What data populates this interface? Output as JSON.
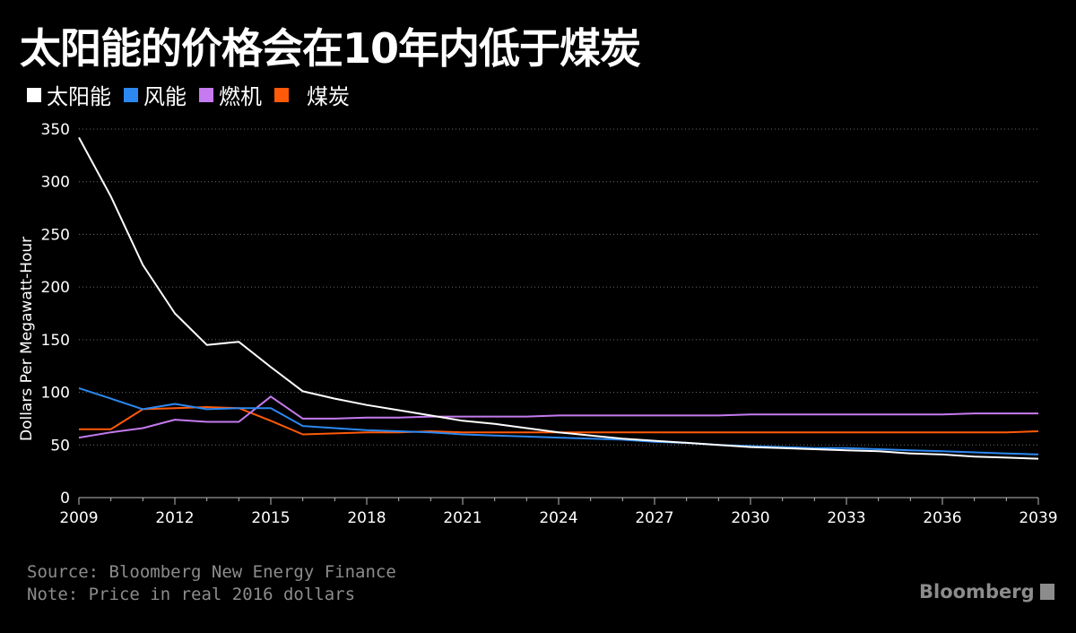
{
  "header": {
    "title": "太阳能的价格会在10年内低于煤炭"
  },
  "legend": [
    {
      "label": "太阳能",
      "color": "#ffffff"
    },
    {
      "label": "风能",
      "color": "#2c88f0"
    },
    {
      "label": "燃机",
      "color": "#c57af0"
    },
    {
      "label": "煤炭",
      "color": "#ff5a0a"
    }
  ],
  "footer": {
    "source": "Source: Bloomberg New Energy Finance",
    "note": "Note: Price in real 2016 dollars",
    "brand": "Bloomberg"
  },
  "chart_data": {
    "type": "line",
    "title": "太阳能的价格会在10年内低于煤炭",
    "xlabel": "",
    "ylabel": "Dollars Per Megawatt-Hour",
    "xlim": [
      2009,
      2039
    ],
    "ylim": [
      0,
      350
    ],
    "x_ticks": [
      "2009",
      "2012",
      "2015",
      "2018",
      "2021",
      "2024",
      "2027",
      "2030",
      "2033",
      "2036",
      "2039"
    ],
    "y_ticks": [
      "0",
      "50",
      "100",
      "150",
      "200",
      "250",
      "300",
      "350"
    ],
    "grid": true,
    "legend_position": "top-left",
    "x": [
      2009,
      2010,
      2011,
      2012,
      2013,
      2014,
      2015,
      2016,
      2017,
      2018,
      2019,
      2020,
      2021,
      2022,
      2023,
      2024,
      2025,
      2026,
      2027,
      2028,
      2029,
      2030,
      2031,
      2032,
      2033,
      2034,
      2035,
      2036,
      2037,
      2038,
      2039
    ],
    "series": [
      {
        "name": "太阳能",
        "color": "#ffffff",
        "values": [
          342,
          286,
          221,
          175,
          145,
          148,
          124,
          101,
          94,
          88,
          83,
          78,
          73,
          70,
          66,
          62,
          59,
          56,
          54,
          52,
          50,
          48,
          47,
          46,
          45,
          44,
          42,
          41,
          39,
          38,
          37
        ]
      },
      {
        "name": "风能",
        "color": "#2c88f0",
        "values": [
          104,
          94,
          84,
          89,
          84,
          85,
          85,
          68,
          66,
          64,
          63,
          62,
          60,
          59,
          58,
          57,
          56,
          55,
          53,
          52,
          50,
          49,
          48,
          47,
          47,
          46,
          45,
          44,
          43,
          42,
          41
        ]
      },
      {
        "name": "燃机",
        "color": "#c57af0",
        "values": [
          57,
          62,
          66,
          74,
          72,
          72,
          96,
          75,
          75,
          76,
          76,
          77,
          77,
          77,
          77,
          78,
          78,
          78,
          78,
          78,
          78,
          79,
          79,
          79,
          79,
          79,
          79,
          79,
          80,
          80,
          80
        ]
      },
      {
        "name": "煤炭",
        "color": "#ff5a0a",
        "values": [
          65,
          65,
          84,
          85,
          86,
          85,
          73,
          60,
          61,
          62,
          62,
          63,
          62,
          62,
          62,
          62,
          62,
          62,
          62,
          62,
          62,
          62,
          62,
          62,
          62,
          62,
          62,
          62,
          62,
          62,
          63
        ]
      }
    ]
  }
}
